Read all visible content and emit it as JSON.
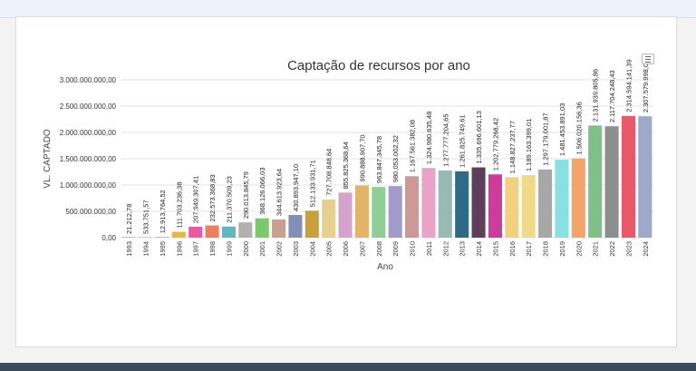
{
  "colors": {
    "background": "#ffffff",
    "grid": "#e6e6e6",
    "axis_text": "#333333"
  },
  "chart_menu_icon": "hamburger-menu-icon",
  "chart_data": {
    "type": "bar",
    "title": "Captação de recursos por ano",
    "xlabel": "Ano",
    "ylabel": "VL. CAPTADO",
    "ylim": [
      0,
      3000000000
    ],
    "yticks": [
      0,
      500000000,
      1000000000,
      1500000000,
      2000000000,
      2500000000,
      3000000000
    ],
    "ytick_labels": [
      "0,00",
      "500.000.000,00",
      "1.000.000.000,00",
      "1.500.000.000,00",
      "2.000.000.000,00",
      "2.500.000.000,00",
      "3.000.000.000,00"
    ],
    "grid": true,
    "categories": [
      "1993",
      "1994",
      "1995",
      "1996",
      "1997",
      "1998",
      "1999",
      "2000",
      "2001",
      "2002",
      "2003",
      "2004",
      "2005",
      "2006",
      "2007",
      "2008",
      "2009",
      "2010",
      "2011",
      "2012",
      "2013",
      "2014",
      "2015",
      "2016",
      "2017",
      "2018",
      "2019",
      "2020",
      "2021",
      "2022",
      "2023",
      "2024"
    ],
    "values": [
      21212.78,
      533751.57,
      12913764.52,
      111703236.38,
      207949307.41,
      232573368.83,
      211370509.23,
      290013845.79,
      368126066.03,
      344613923.64,
      430893947.1,
      512133931.71,
      727708848.64,
      855825368.64,
      990888907.7,
      963847345.78,
      980053002.32,
      1167561382.08,
      1324980635.48,
      1277777204.65,
      1261825749.61,
      1335696601.13,
      1202779268.42,
      1148827237.77,
      1189163399.01,
      1297179001.87,
      1481453891.03,
      1506020156.36,
      2131939805.86,
      2117704248.43,
      2314594141.39,
      2307579998.0
    ],
    "value_labels": [
      "21.212,78",
      "533.751,57",
      "12.913.764,52",
      "111.703.236,38",
      "207.949.307,41",
      "232.573.368,83",
      "211.370.509,23",
      "290.013.845,79",
      "368.126.066,03",
      "344.613.923,64",
      "430.893.947,10",
      "512.133.931,71",
      "727.708.848,64",
      "855.825.368,64",
      "990.888.907,70",
      "963.847.345,78",
      "980.053.002,32",
      "1.167.561.382,08",
      "1.324.980.635,48",
      "1.277.777.204,65",
      "1.261.825.749,61",
      "1.335.696.601,13",
      "1.202.779.268,42",
      "1.148.827.237,77",
      "1.189.163.399,01",
      "1.297.179.001,87",
      "1.481.453.891,03",
      "1.506.020.156,36",
      "2.131.939.805,86",
      "2.117.704.248,43",
      "2.314.594.141,39",
      "2.307.579.998,00"
    ],
    "bar_colors": [
      "#8fa6c8",
      "#f3a07a",
      "#6fc3d0",
      "#e5b840",
      "#ea5aa0",
      "#f07d5c",
      "#5fb8c1",
      "#b1b1b1",
      "#7bc96a",
      "#c9a08f",
      "#8290b8",
      "#c9a13c",
      "#e6d08d",
      "#d4a3cc",
      "#e2b468",
      "#8fcf96",
      "#a29acb",
      "#cc9898",
      "#eaa3c6",
      "#99b9b4",
      "#2f6b87",
      "#5d3e5b",
      "#cc3c9b",
      "#f3cf80",
      "#f1d98a",
      "#a7a7a7",
      "#88e0e0",
      "#f3a46a",
      "#7fbf8a",
      "#8e8e8e",
      "#e85a6a",
      "#9ea8c9"
    ]
  }
}
